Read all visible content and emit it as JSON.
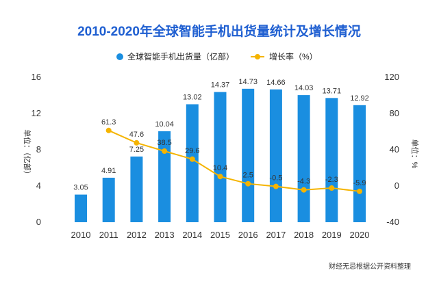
{
  "chart_data": {
    "type": "bar",
    "title": "2010-2020年全球智能手机出货量统计及增长情况",
    "categories": [
      "2010",
      "2011",
      "2012",
      "2013",
      "2014",
      "2015",
      "2016",
      "2017",
      "2018",
      "2019",
      "2020"
    ],
    "series": [
      {
        "name": "全球智能手机出货量（亿部）",
        "type": "bar",
        "axis": "left",
        "values": [
          3.05,
          4.91,
          7.25,
          10.04,
          13.02,
          14.37,
          14.73,
          14.66,
          14.03,
          13.71,
          12.92
        ],
        "labels": [
          "3.05",
          "4.91",
          "7.25",
          "10.04",
          "13.02",
          "14.37",
          "14.73",
          "14.66",
          "14.03",
          "13.71",
          "12.92"
        ]
      },
      {
        "name": "增长率（%）",
        "type": "line",
        "axis": "right",
        "values": [
          null,
          61.3,
          47.6,
          38.5,
          29.6,
          10.4,
          2.5,
          -0.5,
          -4.3,
          -2.3,
          -5.9
        ],
        "labels": [
          "",
          "61.3",
          "47.6",
          "38.5",
          "29.6",
          "10.4",
          "2.5",
          "-0.5",
          "-4.3",
          "-2.3",
          "-5.9"
        ]
      }
    ],
    "ylabel": "单位：（亿部）",
    "y2label": "单位：%",
    "ylim": [
      0,
      16
    ],
    "yticks": [
      "0",
      "4",
      "8",
      "12",
      "16"
    ],
    "y2lim": [
      -40,
      120
    ],
    "y2ticks": [
      "-40",
      "0",
      "40",
      "80",
      "120"
    ],
    "legend_position": "top",
    "grid": false,
    "colors": {
      "bar": "#1a8ee0",
      "line": "#f5b400",
      "title": "#1f5fd1"
    }
  },
  "source": "财经无忌根据公开资料整理"
}
